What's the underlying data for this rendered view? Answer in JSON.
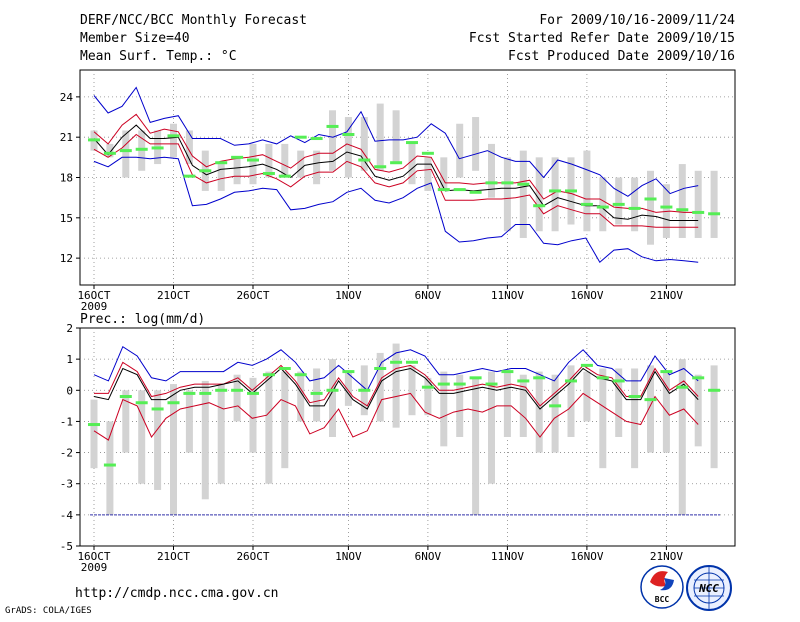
{
  "header": {
    "left": [
      "DERF/NCC/BCC Monthly Forecast",
      "Member Size=40",
      "Mean Surf. Temp.: °C"
    ],
    "right": [
      "For 2009/10/16-2009/11/24",
      "Fcst Started Refer Date 2009/10/15",
      "Fcst Produced Date 2009/10/16"
    ]
  },
  "footer": {
    "url": "http://cmdp.ncc.cma.gov.cn",
    "grads": "GrADS: COLA/IGES",
    "logo_bcc": "BCC",
    "logo_ncc": "NCC"
  },
  "colors": {
    "max_min": "#0000cc",
    "spread": "#cc0022",
    "mean": "#000000",
    "bars": "#d3d3d3",
    "obs": "#55ee55",
    "grid": "#888888",
    "floor": "#3333aa"
  },
  "chart_data": [
    {
      "type": "line",
      "title": "Mean Surf. Temp.: °C",
      "x_ticks": [
        "16OCT",
        "21OCT",
        "26OCT",
        "1NOV",
        "6NOV",
        "11NOV",
        "16NOV",
        "21NOV"
      ],
      "x_tick_day": [
        1,
        6,
        11,
        17,
        22,
        27,
        32,
        37
      ],
      "x_year_label": "2009",
      "days": 40,
      "ylim": [
        10,
        26
      ],
      "y_ticks": [
        12,
        15,
        18,
        21,
        24
      ],
      "series": [
        {
          "name": "max",
          "role": "max_min",
          "values": [
            24.1,
            22.8,
            23.3,
            24.7,
            22.1,
            22.4,
            22.6,
            20.9,
            20.9,
            20.9,
            20.4,
            20.5,
            20.8,
            20.5,
            21.1,
            20.6,
            21.2,
            21.0,
            21.4,
            22.9,
            20.7,
            20.8,
            20.8,
            21.0,
            22.0,
            21.3,
            19.4,
            19.7,
            20.0,
            19.5,
            19.2,
            19.2,
            18.0,
            19.3,
            19.0,
            18.6,
            18.2,
            17.2,
            16.6,
            17.4,
            17.9,
            16.8,
            17.2,
            17.4
          ]
        },
        {
          "name": "spread_high",
          "role": "spread",
          "values": [
            21.4,
            20.5,
            21.9,
            22.7,
            21.3,
            21.6,
            21.4,
            19.6,
            18.8,
            19.2,
            19.4,
            19.5,
            19.7,
            19.2,
            18.7,
            19.5,
            19.8,
            19.8,
            20.5,
            20.1,
            18.6,
            18.4,
            18.7,
            19.6,
            19.5,
            17.6,
            17.6,
            17.5,
            17.6,
            17.6,
            17.6,
            17.8,
            16.4,
            17.0,
            16.8,
            16.4,
            16.4,
            15.8,
            15.7,
            15.7,
            15.4,
            15.5,
            15.4,
            15.4
          ]
        },
        {
          "name": "mean",
          "role": "mean",
          "values": [
            20.9,
            19.7,
            21.0,
            21.9,
            20.9,
            20.9,
            21.0,
            18.9,
            18.2,
            18.6,
            18.7,
            18.8,
            19.0,
            18.6,
            18.0,
            18.9,
            19.1,
            19.2,
            19.9,
            19.6,
            18.1,
            17.8,
            18.1,
            19.0,
            19.0,
            17.0,
            17.1,
            17.0,
            17.1,
            17.2,
            17.2,
            17.4,
            15.9,
            16.5,
            16.2,
            15.9,
            15.9,
            15.0,
            14.9,
            15.2,
            15.1,
            14.8,
            14.8,
            14.8
          ]
        },
        {
          "name": "spread_low",
          "role": "spread",
          "values": [
            20.1,
            19.5,
            20.2,
            21.2,
            20.5,
            20.5,
            20.5,
            18.2,
            17.6,
            17.9,
            18.1,
            18.1,
            18.3,
            17.9,
            17.3,
            18.1,
            18.4,
            18.4,
            19.2,
            18.8,
            17.6,
            17.3,
            17.6,
            18.5,
            18.6,
            16.3,
            16.3,
            16.3,
            16.4,
            16.4,
            16.5,
            16.7,
            15.3,
            15.9,
            15.6,
            15.3,
            15.3,
            14.4,
            14.4,
            14.4,
            14.3,
            14.3,
            14.3,
            14.3
          ]
        },
        {
          "name": "min",
          "role": "max_min",
          "values": [
            19.2,
            18.8,
            19.5,
            19.5,
            19.4,
            19.5,
            19.4,
            15.9,
            16.0,
            16.4,
            16.9,
            17.0,
            17.2,
            17.1,
            15.6,
            15.7,
            16.0,
            16.2,
            16.9,
            17.2,
            16.3,
            16.1,
            16.5,
            17.2,
            17.6,
            14.0,
            13.2,
            13.3,
            13.5,
            13.6,
            14.5,
            14.5,
            13.1,
            13.0,
            13.3,
            13.5,
            11.7,
            12.6,
            12.7,
            12.1,
            11.8,
            11.9,
            11.8,
            11.7
          ]
        }
      ],
      "bars_low": [
        20.0,
        19.5,
        18.0,
        18.5,
        19.0,
        19.5,
        19.0,
        17.0,
        17.0,
        17.5,
        17.5,
        18.0,
        18.0,
        18.0,
        17.5,
        18.5,
        18.0,
        18.5,
        18.5,
        19.0,
        17.5,
        17.0,
        17.0,
        18.0,
        18.5,
        16.5,
        14.0,
        13.5,
        14.0,
        14.0,
        14.5,
        14.0,
        14.0,
        14.5,
        14.0,
        13.0,
        13.5,
        13.5,
        13.5,
        13.5
      ],
      "bars_high": [
        21.5,
        20.5,
        21.5,
        21.5,
        21.5,
        22.0,
        21.5,
        20.0,
        19.0,
        19.5,
        20.5,
        20.5,
        20.5,
        20.0,
        20.0,
        23.0,
        22.5,
        22.5,
        23.5,
        23.0,
        20.5,
        19.5,
        19.5,
        22.0,
        22.5,
        20.5,
        19.5,
        20.0,
        19.5,
        19.5,
        19.5,
        20.0,
        18.0,
        18.0,
        18.0,
        18.5,
        17.5,
        19.0,
        18.5,
        18.5
      ],
      "observed": [
        20.8,
        19.8,
        20.0,
        20.1,
        20.2,
        21.1,
        18.1,
        18.5,
        19.1,
        19.5,
        19.3,
        18.3,
        18.1,
        21.0,
        20.9,
        21.8,
        21.2,
        19.3,
        18.8,
        19.1,
        20.6,
        19.8,
        17.1,
        17.1,
        16.9,
        17.6,
        17.6,
        17.5,
        15.9,
        17.0,
        17.0,
        16.0,
        15.8,
        16.0,
        15.7,
        16.4,
        15.8,
        15.6,
        15.4,
        15.3
      ]
    },
    {
      "type": "line",
      "title": "Prec.: log(mm/d)",
      "x_ticks": [
        "16OCT",
        "21OCT",
        "26OCT",
        "1NOV",
        "6NOV",
        "11NOV",
        "16NOV",
        "21NOV"
      ],
      "x_tick_day": [
        1,
        6,
        11,
        17,
        22,
        27,
        32,
        37
      ],
      "x_year_label": "2009",
      "days": 40,
      "ylim": [
        -5,
        2
      ],
      "y_ticks": [
        -5,
        -4,
        -3,
        -2,
        -1,
        0,
        1,
        2
      ],
      "floor_value": -4,
      "series": [
        {
          "name": "max",
          "role": "max_min",
          "values": [
            0.5,
            0.3,
            1.4,
            1.1,
            0.4,
            0.3,
            0.6,
            0.6,
            0.6,
            0.6,
            0.9,
            0.8,
            1.0,
            1.3,
            0.9,
            0.3,
            0.4,
            0.8,
            0.4,
            0.0,
            0.9,
            1.2,
            1.3,
            1.1,
            0.5,
            0.5,
            0.6,
            0.7,
            0.6,
            0.7,
            0.7,
            0.5,
            0.3,
            0.9,
            1.3,
            0.8,
            0.7,
            0.3,
            0.3,
            1.1,
            0.5,
            0.7,
            0.3
          ]
        },
        {
          "name": "spread_high",
          "role": "spread",
          "values": [
            -0.1,
            -0.1,
            0.9,
            0.6,
            -0.2,
            -0.1,
            0.1,
            0.2,
            0.2,
            0.2,
            0.4,
            0.0,
            0.4,
            0.8,
            0.3,
            -0.4,
            -0.3,
            0.4,
            -0.2,
            -0.5,
            0.4,
            0.7,
            0.8,
            0.5,
            0.0,
            0.0,
            0.1,
            0.2,
            0.1,
            0.2,
            0.1,
            -0.5,
            -0.1,
            0.3,
            0.8,
            0.5,
            0.4,
            -0.2,
            -0.2,
            0.7,
            0.0,
            0.3,
            -0.2
          ]
        },
        {
          "name": "mean",
          "role": "mean",
          "values": [
            -0.2,
            -0.3,
            0.7,
            0.5,
            -0.3,
            -0.3,
            0.0,
            0.1,
            0.1,
            0.2,
            0.3,
            -0.1,
            0.3,
            0.7,
            0.2,
            -0.5,
            -0.5,
            0.3,
            -0.3,
            -0.6,
            0.3,
            0.6,
            0.7,
            0.4,
            -0.1,
            -0.1,
            0.0,
            0.1,
            0.0,
            0.1,
            0.0,
            -0.6,
            -0.2,
            0.2,
            0.7,
            0.4,
            0.3,
            -0.3,
            -0.3,
            0.6,
            -0.1,
            0.2,
            -0.3
          ]
        },
        {
          "name": "spread_low",
          "role": "spread",
          "values": [
            -1.3,
            -1.6,
            -0.3,
            -0.5,
            -1.5,
            -0.9,
            -0.6,
            -0.5,
            -0.4,
            -0.6,
            -0.5,
            -0.9,
            -0.8,
            -0.3,
            -0.5,
            -1.4,
            -1.2,
            -0.6,
            -1.5,
            -1.3,
            -0.3,
            -0.2,
            -0.1,
            -0.7,
            -0.9,
            -0.7,
            -0.6,
            -0.7,
            -0.5,
            -0.5,
            -0.9,
            -1.5,
            -0.9,
            -0.6,
            -0.1,
            -0.4,
            -0.7,
            -1.0,
            -1.1,
            -0.2,
            -0.8,
            -0.6,
            -1.1
          ]
        }
      ],
      "bars_low": [
        -2.5,
        -4.0,
        -2.0,
        -3.0,
        -3.2,
        -4.0,
        -2.0,
        -3.5,
        -3.0,
        -1.0,
        -2.0,
        -3.0,
        -2.5,
        -1.0,
        -1.0,
        -1.5,
        -0.5,
        -0.8,
        -1.0,
        -1.2,
        -0.8,
        -0.8,
        -1.8,
        -1.5,
        -4.0,
        -3.0,
        -1.5,
        -1.5,
        -2.0,
        -2.0,
        -1.5,
        -1.0,
        -2.5,
        -1.5,
        -2.5,
        -2.0,
        -2.0,
        -4.0,
        -1.8,
        -2.5
      ],
      "bars_high": [
        -0.3,
        -1.0,
        0.0,
        0.0,
        0.0,
        0.2,
        0.0,
        0.3,
        0.2,
        0.5,
        0.4,
        0.6,
        0.6,
        0.6,
        0.7,
        1.0,
        0.6,
        0.8,
        1.2,
        1.5,
        0.8,
        0.4,
        0.6,
        0.5,
        0.4,
        0.6,
        0.6,
        0.5,
        0.6,
        0.5,
        0.8,
        0.6,
        0.7,
        0.7,
        0.7,
        0.8,
        0.6,
        1.0,
        0.5,
        0.8
      ],
      "observed": [
        -1.1,
        -2.4,
        -0.2,
        -0.4,
        -0.6,
        -0.4,
        -0.1,
        -0.1,
        0.0,
        0.0,
        -0.1,
        0.5,
        0.7,
        0.5,
        -0.1,
        0.0,
        0.6,
        0.0,
        0.7,
        0.9,
        0.9,
        0.1,
        0.2,
        0.2,
        0.4,
        0.2,
        0.6,
        0.3,
        0.4,
        -0.5,
        0.3,
        0.8,
        0.4,
        0.3,
        -0.2,
        -0.3,
        0.6,
        0.1,
        0.4,
        0.0
      ]
    }
  ]
}
